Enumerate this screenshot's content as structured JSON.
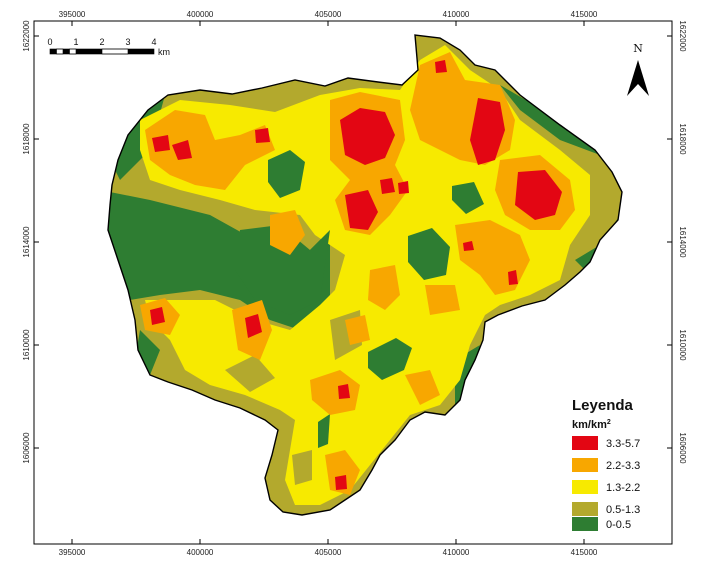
{
  "axes": {
    "x_ticks": [
      "395000",
      "400000",
      "405000",
      "410000",
      "415000"
    ],
    "y_ticks": [
      "1622000",
      "1618000",
      "1614000",
      "1610000",
      "1606000"
    ]
  },
  "scalebar": {
    "labels": [
      "0",
      "1",
      "2",
      "3",
      "4"
    ],
    "unit": "km"
  },
  "north_arrow": {
    "label": "N",
    "icon": "north-arrow-icon"
  },
  "legend": {
    "title": "Leyenda",
    "unit": "km/km",
    "unit_superscript": "2",
    "classes": [
      {
        "label": "3.3-5.7",
        "color": "#e30613"
      },
      {
        "label": "2.2-3.3",
        "color": "#f8a700"
      },
      {
        "label": "1.3-2.2",
        "color": "#f7ea00"
      },
      {
        "label": "0.5-1.3",
        "color": "#b3a92d"
      },
      {
        "label": "0-0.5",
        "color": "#2e7d32"
      }
    ]
  }
}
